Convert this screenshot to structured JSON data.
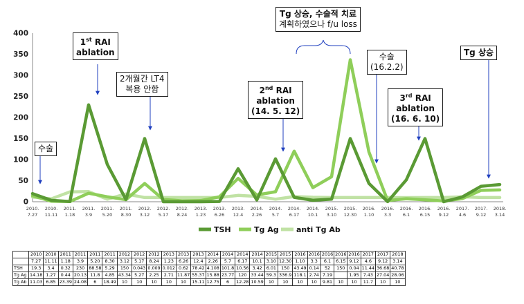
{
  "chart_data": {
    "type": "line",
    "ylim": [
      0,
      400
    ],
    "yticks": [
      0,
      50,
      100,
      150,
      200,
      250,
      300,
      350,
      400
    ],
    "categories": [
      "2010. 7.27",
      "2010. 11.11",
      "2011. 1.18",
      "2011. 3.9",
      "2011. 5.20",
      "2011. 8.30",
      "2012. 3.12",
      "2012. 5.17",
      "2012. 8.24",
      "2013. 1.23",
      "2013. 6.26",
      "2013. 12.4",
      "2014. 2.26",
      "2014. 5.7",
      "2014. 6.17",
      "2014. 10.1",
      "2015. 3.10",
      "2015. 12.30",
      "2016. 1.10",
      "2016. 3.3",
      "2016. 6.1",
      "2016. 6.15",
      "2016. 9.12",
      "2017. 4.6",
      "2017. 9.12",
      "2018. 3.14"
    ],
    "series": [
      {
        "name": "TSH",
        "color": "#5a9a34",
        "values": [
          19.3,
          3.4,
          0.32,
          230,
          88.58,
          5.29,
          150,
          0.043,
          0.009,
          0.012,
          0.62,
          78.42,
          4.108,
          101.8,
          10.56,
          3.42,
          6.01,
          150,
          43.49,
          0.14,
          52,
          150,
          0.04,
          11.44,
          36.68,
          40.78
        ]
      },
      {
        "name": "Tg Ag",
        "color": "#8fce5a",
        "values": [
          14.18,
          1.27,
          0.44,
          20.13,
          11.8,
          4.85,
          43.34,
          5.27,
          2.25,
          2.71,
          11.87,
          55.37,
          15.88,
          23.77,
          120,
          33.44,
          59.3,
          336.9,
          118.1,
          2.74,
          7.19,
          null,
          1.95,
          7.43,
          27.04,
          28.06
        ]
      },
      {
        "name": "anti Tg Ab",
        "color": "#c0e2a4",
        "values": [
          11.03,
          6.85,
          23.39,
          24.08,
          6,
          18.49,
          10,
          10,
          10,
          10,
          10,
          15.11,
          12.75,
          6,
          12.28,
          10.59,
          10,
          10,
          10,
          10,
          9.81,
          10,
          10,
          11.7,
          10,
          10
        ]
      }
    ],
    "xlabels": [
      [
        "2010.",
        "7.27"
      ],
      [
        "2010.",
        "11.11"
      ],
      [
        "2011.",
        "1.18"
      ],
      [
        "2011.",
        "3.9"
      ],
      [
        "2011.",
        "5.20"
      ],
      [
        "2011.",
        "8.30"
      ],
      [
        "2012.",
        "3.12"
      ],
      [
        "2012.",
        "5.17"
      ],
      [
        "2012.",
        "8.24"
      ],
      [
        "2013.",
        "1.23"
      ],
      [
        "2013.",
        "6.26"
      ],
      [
        "2013.",
        "12.4"
      ],
      [
        "2014.",
        "2.26"
      ],
      [
        "2014.",
        "5.7"
      ],
      [
        "2014.",
        "6.17"
      ],
      [
        "2014.",
        "10.1"
      ],
      [
        "2015.",
        "3.10"
      ],
      [
        "2015.",
        "12.30"
      ],
      [
        "2016.",
        "1.10"
      ],
      [
        "2016.",
        "3.3"
      ],
      [
        "2016.",
        "6.1"
      ],
      [
        "2016.",
        "6.15"
      ],
      [
        "2016.",
        "9.12"
      ],
      [
        "2017.",
        "4.6"
      ],
      [
        "2017.",
        "9.12"
      ],
      [
        "2018.",
        "3.14"
      ]
    ],
    "legend_position": "bottom-center"
  },
  "annotations": {
    "surgery1": "수술",
    "rai1_line1": "1",
    "rai1_sup": "st",
    "rai1_line1b": " RAI",
    "rai1_line2": "ablation",
    "lt4_line1": "2개월간 LT4",
    "lt4_line2": "복용 안함",
    "rai2_line1": "2",
    "rai2_sup": "nd",
    "rai2_line1b": " RAI",
    "rai2_line2": "ablation",
    "rai2_line3": "(14. 5. 12)",
    "tg_plan_line1": "Tg 상승, 수술적 치료",
    "tg_plan_line2": "계획하였으나 f/u loss",
    "surgery2_line1": "수술",
    "surgery2_line2": "(16.2.2)",
    "rai3_line1": "3",
    "rai3_sup": "rd",
    "rai3_line1b": " RAI",
    "rai3_line2": "ablation",
    "rai3_line3": "(16. 6. 10)",
    "tg_rise": "Tg 상승"
  },
  "table": {
    "header_year": [
      "2010",
      "2010",
      "2011",
      "2011",
      "2011",
      "2011",
      "2012",
      "2012",
      "2012",
      "2013",
      "2013",
      "2013",
      "2014",
      "2014",
      "2014",
      "2014",
      "2015",
      "2015",
      "2016",
      "2016",
      "2016",
      "2016",
      "2016",
      "2017",
      "2017",
      "2018"
    ],
    "header_date": [
      "7.27",
      "11.11",
      "1.18",
      "3.9",
      "5.20",
      "8.30",
      "3.12",
      "5.17",
      "8.24",
      "1.23",
      "6.26",
      "12.4",
      "2.26",
      "5.7",
      "6.17",
      "10.1",
      "3.10",
      "12.30",
      "1.10",
      "3.3",
      "6.1",
      "6.15",
      "9.12",
      "4.6",
      "9.12",
      "3.14"
    ],
    "rows": [
      {
        "label": "TSH",
        "cells": [
          "19.3",
          "3.4",
          "0.32",
          "230",
          "88.58",
          "5.29",
          "150",
          "0.043",
          "0.009",
          "0.012",
          "0.62",
          "78.42",
          "4.108",
          "101.8",
          "10.56",
          "3.42",
          "6.01",
          "150",
          "43.49",
          "0.14",
          "52",
          "150",
          "0.04",
          "11.44",
          "36.68",
          "40.78"
        ]
      },
      {
        "label": "Tg Ag",
        "cells": [
          "14.18",
          "1.27",
          "0.44",
          "20.13",
          "11.8",
          "4.85",
          "43.34",
          "5.27",
          "2.25",
          "2.71",
          "11.87",
          "55.37",
          "15.88",
          "23.77",
          "120",
          "33.44",
          "59.3",
          "336.9",
          "118.1",
          "2.74",
          "7.19",
          "",
          "1.95",
          "7.43",
          "27.04",
          "28.06"
        ]
      },
      {
        "label": "Tg Ab",
        "cells": [
          "11.03",
          "6.85",
          "23.39",
          "24.08",
          "6",
          "18.49",
          "10",
          "10",
          "10",
          "10",
          "10",
          "15.11",
          "12.75",
          "6",
          "12.28",
          "10.59",
          "10",
          "10",
          "10",
          "10",
          "9.81",
          "10",
          "10",
          "11.7",
          "10",
          "10"
        ]
      }
    ]
  }
}
